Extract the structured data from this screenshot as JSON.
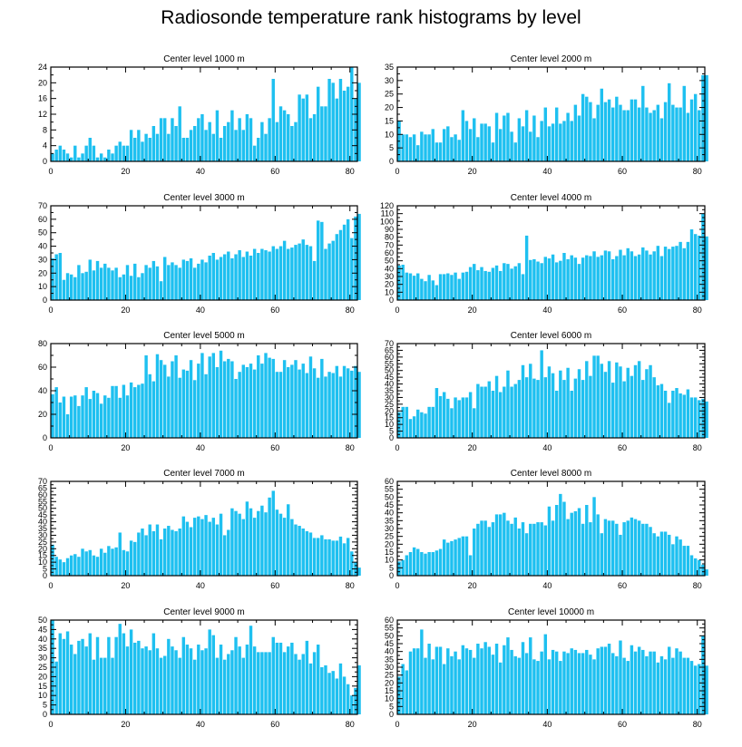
{
  "title": "Radiosonde temperature rank histograms by level",
  "colors": {
    "bar": "#1ec0f0",
    "axis": "#000000",
    "background": "#ffffff"
  },
  "chart_data": [
    {
      "type": "bar",
      "title": "Center level 1000 m",
      "xlim": [
        0,
        82
      ],
      "ylim": [
        0,
        24
      ],
      "xticks": [
        0,
        20,
        40,
        60,
        80
      ],
      "yticks": [
        0,
        4,
        8,
        12,
        16,
        20,
        24
      ],
      "values": [
        2,
        3,
        4,
        3,
        2,
        1,
        4,
        1,
        2,
        4,
        6,
        4,
        1,
        2,
        1,
        3,
        2,
        4,
        5,
        4,
        4,
        8,
        6,
        8,
        5,
        7,
        6,
        9,
        7,
        11,
        11,
        7,
        11,
        9,
        14,
        6,
        6,
        8,
        9,
        11,
        12,
        8,
        10,
        7,
        13,
        6,
        9,
        10,
        13,
        8,
        11,
        8,
        12,
        11,
        4,
        6,
        10,
        7,
        11,
        21,
        10,
        14,
        13,
        12,
        9,
        10,
        17,
        16,
        17,
        11,
        12,
        19,
        14,
        14,
        21,
        20,
        16,
        21,
        18,
        19,
        24,
        16,
        20
      ]
    },
    {
      "type": "bar",
      "title": "Center level 2000 m",
      "xlim": [
        0,
        82
      ],
      "ylim": [
        0,
        35
      ],
      "xticks": [
        0,
        20,
        40,
        60,
        80
      ],
      "yticks": [
        0,
        5,
        10,
        15,
        20,
        25,
        30,
        35
      ],
      "values": [
        15,
        10,
        10,
        9,
        10,
        6,
        11,
        10,
        10,
        12,
        7,
        7,
        12,
        13,
        9,
        10,
        8,
        19,
        15,
        12,
        16,
        9,
        14,
        14,
        13,
        7,
        18,
        12,
        17,
        18,
        11,
        7,
        16,
        13,
        19,
        11,
        17,
        9,
        15,
        20,
        13,
        14,
        20,
        14,
        15,
        18,
        15,
        21,
        17,
        25,
        24,
        22,
        16,
        21,
        27,
        22,
        23,
        20,
        24,
        21,
        19,
        19,
        23,
        23,
        20,
        28,
        20,
        18,
        19,
        21,
        16,
        22,
        29,
        21,
        20,
        20,
        28,
        18,
        23,
        25,
        19,
        32,
        32
      ]
    },
    {
      "type": "bar",
      "title": "Center level 3000 m",
      "xlim": [
        0,
        82
      ],
      "ylim": [
        0,
        70
      ],
      "xticks": [
        0,
        20,
        40,
        60,
        80
      ],
      "yticks": [
        0,
        10,
        20,
        30,
        40,
        50,
        60,
        70
      ],
      "values": [
        31,
        34,
        35,
        15,
        20,
        19,
        17,
        26,
        20,
        21,
        30,
        22,
        29,
        24,
        27,
        24,
        22,
        24,
        17,
        19,
        26,
        18,
        27,
        17,
        20,
        26,
        24,
        29,
        25,
        14,
        32,
        26,
        28,
        26,
        24,
        30,
        29,
        31,
        24,
        27,
        30,
        28,
        33,
        35,
        30,
        32,
        34,
        36,
        31,
        34,
        37,
        32,
        36,
        33,
        38,
        35,
        38,
        37,
        36,
        40,
        38,
        40,
        44,
        38,
        39,
        41,
        42,
        45,
        41,
        40,
        29,
        59,
        58,
        38,
        42,
        44,
        49,
        52,
        56,
        60,
        46,
        62,
        64
      ]
    },
    {
      "type": "bar",
      "title": "Center level 4000 m",
      "xlim": [
        0,
        82
      ],
      "ylim": [
        0,
        120
      ],
      "xticks": [
        0,
        20,
        40,
        60,
        80
      ],
      "yticks": [
        0,
        10,
        20,
        30,
        40,
        50,
        60,
        70,
        80,
        90,
        100,
        110,
        120
      ],
      "values": [
        44,
        45,
        35,
        34,
        31,
        34,
        27,
        24,
        32,
        25,
        19,
        33,
        33,
        34,
        32,
        35,
        27,
        35,
        36,
        42,
        46,
        38,
        42,
        37,
        36,
        41,
        44,
        37,
        47,
        46,
        40,
        43,
        47,
        33,
        82,
        51,
        52,
        49,
        47,
        55,
        53,
        58,
        48,
        50,
        60,
        52,
        57,
        54,
        46,
        54,
        57,
        56,
        62,
        55,
        57,
        63,
        62,
        52,
        56,
        64,
        57,
        66,
        62,
        56,
        58,
        67,
        63,
        58,
        62,
        69,
        56,
        68,
        65,
        68,
        69,
        74,
        66,
        74,
        90,
        84,
        82,
        110,
        81
      ]
    },
    {
      "type": "bar",
      "title": "Center level 5000 m",
      "xlim": [
        0,
        82
      ],
      "ylim": [
        0,
        80
      ],
      "xticks": [
        0,
        20,
        40,
        60,
        80
      ],
      "yticks": [
        0,
        20,
        40,
        60,
        80
      ],
      "values": [
        37,
        43,
        30,
        35,
        20,
        35,
        36,
        27,
        36,
        43,
        33,
        40,
        38,
        29,
        36,
        34,
        44,
        44,
        34,
        45,
        36,
        47,
        43,
        45,
        46,
        70,
        54,
        48,
        71,
        66,
        62,
        52,
        65,
        70,
        51,
        58,
        57,
        66,
        49,
        63,
        72,
        54,
        69,
        72,
        60,
        74,
        65,
        67,
        65,
        50,
        56,
        62,
        60,
        63,
        58,
        70,
        63,
        72,
        68,
        67,
        56,
        56,
        66,
        60,
        62,
        66,
        58,
        63,
        55,
        69,
        59,
        51,
        67,
        52,
        56,
        55,
        61,
        52,
        61,
        59,
        57,
        61,
        56
      ]
    },
    {
      "type": "bar",
      "title": "Center level 6000 m",
      "xlim": [
        0,
        82
      ],
      "ylim": [
        0,
        70
      ],
      "xticks": [
        0,
        20,
        40,
        60,
        80
      ],
      "yticks": [
        0,
        5,
        10,
        15,
        20,
        25,
        30,
        35,
        40,
        45,
        50,
        55,
        60,
        65,
        70
      ],
      "values": [
        19,
        23,
        23,
        14,
        16,
        21,
        19,
        18,
        23,
        23,
        37,
        31,
        34,
        29,
        22,
        30,
        28,
        30,
        30,
        34,
        22,
        40,
        38,
        38,
        42,
        35,
        46,
        34,
        38,
        50,
        38,
        40,
        43,
        54,
        45,
        55,
        44,
        43,
        65,
        45,
        53,
        48,
        35,
        50,
        43,
        52,
        35,
        44,
        51,
        43,
        57,
        46,
        61,
        61,
        55,
        49,
        57,
        41,
        56,
        53,
        42,
        52,
        46,
        54,
        57,
        43,
        51,
        54,
        45,
        39,
        40,
        35,
        26,
        35,
        37,
        33,
        32,
        36,
        30,
        30,
        28,
        29,
        27
      ]
    },
    {
      "type": "bar",
      "title": "Center level 7000 m",
      "xlim": [
        0,
        82
      ],
      "ylim": [
        0,
        70
      ],
      "xticks": [
        0,
        20,
        40,
        60,
        80
      ],
      "yticks": [
        0,
        5,
        10,
        15,
        20,
        25,
        30,
        35,
        40,
        45,
        50,
        55,
        60,
        65,
        70
      ],
      "values": [
        23,
        14,
        12,
        10,
        13,
        15,
        16,
        14,
        20,
        18,
        19,
        15,
        14,
        20,
        17,
        22,
        20,
        21,
        32,
        19,
        18,
        26,
        25,
        32,
        35,
        30,
        38,
        33,
        38,
        27,
        35,
        37,
        34,
        33,
        35,
        44,
        40,
        36,
        43,
        44,
        42,
        45,
        40,
        43,
        38,
        46,
        30,
        34,
        50,
        48,
        46,
        42,
        55,
        50,
        43,
        48,
        52,
        47,
        58,
        63,
        49,
        46,
        43,
        53,
        42,
        38,
        37,
        35,
        33,
        32,
        28,
        28,
        30,
        27,
        27,
        26,
        26,
        29,
        24,
        28,
        18,
        10,
        6
      ]
    },
    {
      "type": "bar",
      "title": "Center level 8000 m",
      "xlim": [
        0,
        82
      ],
      "ylim": [
        0,
        60
      ],
      "xticks": [
        0,
        20,
        40,
        60,
        80
      ],
      "yticks": [
        0,
        5,
        10,
        15,
        20,
        25,
        30,
        35,
        40,
        45,
        50,
        55,
        60
      ],
      "values": [
        9,
        10,
        13,
        15,
        18,
        17,
        15,
        14,
        15,
        15,
        16,
        17,
        23,
        21,
        22,
        23,
        24,
        25,
        25,
        13,
        30,
        33,
        35,
        35,
        31,
        34,
        39,
        39,
        40,
        35,
        33,
        37,
        30,
        34,
        27,
        33,
        33,
        34,
        34,
        32,
        44,
        35,
        45,
        52,
        47,
        36,
        40,
        41,
        43,
        33,
        45,
        34,
        50,
        39,
        27,
        36,
        35,
        35,
        33,
        26,
        34,
        35,
        37,
        36,
        35,
        33,
        33,
        31,
        27,
        25,
        28,
        28,
        26,
        20,
        25,
        23,
        19,
        19,
        13,
        11,
        10,
        7,
        4
      ]
    },
    {
      "type": "bar",
      "title": "Center level 9000 m",
      "xlim": [
        0,
        82
      ],
      "ylim": [
        0,
        50
      ],
      "xticks": [
        0,
        20,
        40,
        60,
        80
      ],
      "yticks": [
        0,
        5,
        10,
        15,
        20,
        25,
        30,
        35,
        40,
        45,
        50
      ],
      "values": [
        50,
        28,
        43,
        40,
        44,
        37,
        32,
        39,
        40,
        36,
        43,
        29,
        41,
        30,
        30,
        41,
        30,
        41,
        48,
        43,
        36,
        45,
        38,
        39,
        35,
        36,
        34,
        43,
        35,
        30,
        31,
        40,
        36,
        34,
        30,
        41,
        37,
        35,
        29,
        37,
        34,
        35,
        45,
        42,
        30,
        37,
        29,
        32,
        34,
        41,
        36,
        30,
        37,
        47,
        36,
        33,
        33,
        33,
        33,
        41,
        38,
        38,
        33,
        36,
        38,
        32,
        29,
        32,
        39,
        27,
        33,
        37,
        25,
        26,
        22,
        23,
        19,
        27,
        20,
        16,
        10,
        14,
        26
      ]
    },
    {
      "type": "bar",
      "title": "Center level 10000 m",
      "xlim": [
        0,
        82
      ],
      "ylim": [
        0,
        60
      ],
      "xticks": [
        0,
        20,
        40,
        60,
        80
      ],
      "yticks": [
        0,
        5,
        10,
        15,
        20,
        25,
        30,
        35,
        40,
        45,
        50,
        55,
        60
      ],
      "values": [
        24,
        32,
        28,
        40,
        42,
        42,
        54,
        36,
        45,
        35,
        43,
        43,
        32,
        42,
        37,
        40,
        35,
        44,
        42,
        41,
        36,
        45,
        42,
        46,
        43,
        38,
        45,
        33,
        44,
        49,
        41,
        37,
        36,
        46,
        39,
        49,
        35,
        34,
        40,
        51,
        35,
        41,
        40,
        34,
        40,
        39,
        42,
        41,
        39,
        39,
        41,
        38,
        35,
        42,
        43,
        43,
        45,
        39,
        37,
        47,
        36,
        34,
        44,
        40,
        43,
        41,
        37,
        40,
        40,
        33,
        37,
        35,
        43,
        36,
        42,
        40,
        36,
        36,
        34,
        31,
        32,
        50,
        31
      ]
    }
  ]
}
